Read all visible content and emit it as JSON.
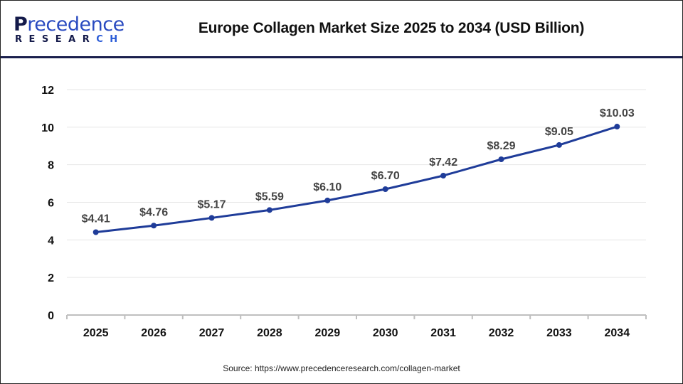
{
  "header": {
    "logo_text": "Precedence",
    "logo_subtext": "RESEARCH",
    "title": "Europe Collagen Market Size 2025 to 2034 (USD Billion)"
  },
  "source": "Source: https://www.precedenceresearch.com/collagen-market",
  "chart_data": {
    "type": "line",
    "title": "Europe Collagen Market Size 2025 to 2034 (USD Billion)",
    "categories": [
      "2025",
      "2026",
      "2027",
      "2028",
      "2029",
      "2030",
      "2031",
      "2032",
      "2033",
      "2034"
    ],
    "values": [
      4.41,
      4.76,
      5.17,
      5.59,
      6.1,
      6.7,
      7.42,
      8.29,
      9.05,
      10.03
    ],
    "data_labels": [
      "$4.41",
      "$4.76",
      "$5.17",
      "$5.59",
      "$6.10",
      "$6.70",
      "$7.42",
      "$8.29",
      "$9.05",
      "$10.03"
    ],
    "yticks": [
      "0",
      "2",
      "4",
      "6",
      "8",
      "10",
      "12"
    ],
    "ylim": [
      0,
      12
    ],
    "grid": true,
    "line_color": "#1f3c99",
    "xlabel": "",
    "ylabel": ""
  }
}
